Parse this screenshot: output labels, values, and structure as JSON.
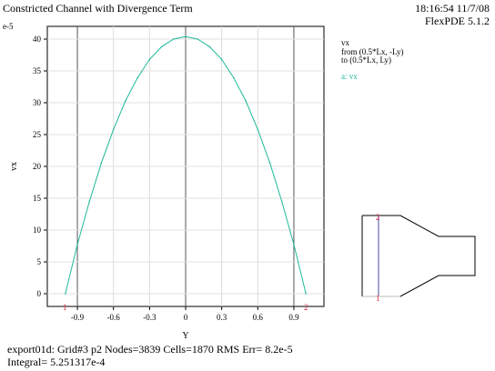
{
  "header": {
    "title": "Constricted Channel with Divergence Term",
    "timestamp": "18:16:54 11/7/08",
    "version": "FlexPDE 5.1.2",
    "scale_note": "e-5"
  },
  "legend": {
    "variable": "vx",
    "from": "from (0.5*Lx, -Ly)",
    "to": "to (0.5*Lx, Ly)",
    "series_label": "a: vx"
  },
  "footer": {
    "line1": "export01d:  Grid#3  p2  Nodes=3839 Cells=1870 RMS Err= 8.2e-5",
    "line2": "Integral=  5.251317e-4"
  },
  "colors": {
    "curve": "#1fb99a",
    "endpoint_labels": "#e0263a",
    "path_line": "#4a4aa8"
  },
  "chart_data": {
    "type": "line",
    "xlabel": "Y",
    "ylabel": "vx",
    "y_scale_note": "e-5",
    "xlim": [
      -1.15,
      1.15
    ],
    "ylim": [
      -2,
      42
    ],
    "x_ticks": [
      -0.9,
      -0.6,
      -0.3,
      0,
      0.3,
      0.6,
      0.9
    ],
    "x_tick_labels": [
      "-0.9",
      "-0.6",
      "-0.3",
      "0",
      "0.3",
      "0.6",
      "0.9"
    ],
    "y_ticks": [
      0,
      5,
      10,
      15,
      20,
      25,
      30,
      35,
      40
    ],
    "y_tick_labels": [
      "0",
      "5",
      "10",
      "15",
      "20",
      "25",
      "30",
      "35",
      "40"
    ],
    "grid": "major lines at x = -0.9, 0, 0.9; light grid elsewhere",
    "endpoint_markers": [
      "1",
      "2"
    ],
    "series": [
      {
        "values_x": [
          -1.0,
          -0.9,
          -0.8,
          -0.7,
          -0.6,
          -0.5,
          -0.4,
          -0.3,
          -0.2,
          -0.1,
          0.0,
          0.1,
          0.2,
          0.3,
          0.4,
          0.5,
          0.6,
          0.7,
          0.8,
          0.9,
          1.0
        ],
        "values_y": [
          0.0,
          7.7,
          14.5,
          20.6,
          25.8,
          30.3,
          33.9,
          36.8,
          38.8,
          40.0,
          40.4,
          40.0,
          38.8,
          36.8,
          33.9,
          30.3,
          25.8,
          20.6,
          14.5,
          7.7,
          0.0
        ]
      }
    ]
  }
}
